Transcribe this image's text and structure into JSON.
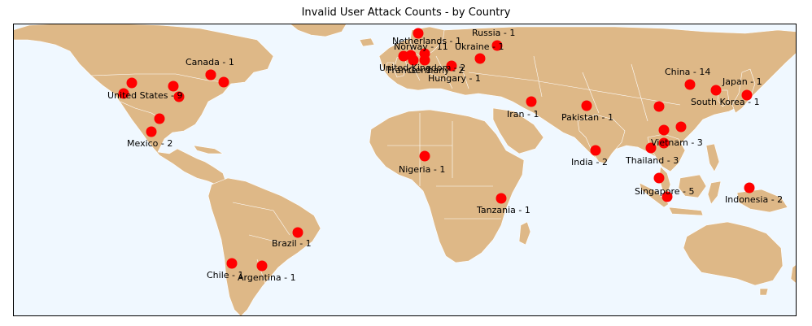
{
  "title": "Invalid User Attack Counts - by Country",
  "colors": {
    "ocean": "#f0f8ff",
    "land": "#deb887",
    "border": "#ffffff",
    "marker": "#ff0000"
  },
  "markers": [
    {
      "id": "us-1"
    },
    {
      "id": "us-2"
    },
    {
      "id": "us-3"
    },
    {
      "id": "us-4"
    },
    {
      "id": "us-5"
    },
    {
      "id": "us-6"
    },
    {
      "id": "ca-1"
    },
    {
      "id": "mx-1"
    },
    {
      "id": "mx-2"
    },
    {
      "id": "br-1"
    },
    {
      "id": "cl-1"
    },
    {
      "id": "ar-1"
    },
    {
      "id": "nl-1"
    },
    {
      "id": "no-1"
    },
    {
      "id": "uk-1"
    },
    {
      "id": "fr-1"
    },
    {
      "id": "de-1"
    },
    {
      "id": "de-2"
    },
    {
      "id": "ru-1"
    },
    {
      "id": "ua-1"
    },
    {
      "id": "hu-1"
    },
    {
      "id": "ng-1"
    },
    {
      "id": "tz-1"
    },
    {
      "id": "ir-1"
    },
    {
      "id": "pk-1"
    },
    {
      "id": "in-1"
    },
    {
      "id": "cn-1"
    },
    {
      "id": "cn-2"
    },
    {
      "id": "jp-1"
    },
    {
      "id": "kr-1"
    },
    {
      "id": "vn-1"
    },
    {
      "id": "vn-2"
    },
    {
      "id": "th-1"
    },
    {
      "id": "th-2"
    },
    {
      "id": "sg-1"
    },
    {
      "id": "id-1"
    },
    {
      "id": "id-2"
    }
  ],
  "labels": [
    {
      "id": "canada",
      "text": "Canada - 1"
    },
    {
      "id": "united-states",
      "text": "United States - 9"
    },
    {
      "id": "mexico",
      "text": "Mexico - 2"
    },
    {
      "id": "brazil",
      "text": "Brazil - 1"
    },
    {
      "id": "chile",
      "text": "Chile - 1"
    },
    {
      "id": "argentina",
      "text": "Argentina - 1"
    },
    {
      "id": "netherlands",
      "text": "Netherlands - 1"
    },
    {
      "id": "norway",
      "text": "Norway - 11"
    },
    {
      "id": "united-kingdom",
      "text": "United Kingdom - 2"
    },
    {
      "id": "france",
      "text": "France - 1"
    },
    {
      "id": "germany",
      "text": "Germany - 2"
    },
    {
      "id": "russia",
      "text": "Russia - 1"
    },
    {
      "id": "ukraine",
      "text": "Ukraine - 1"
    },
    {
      "id": "hungary",
      "text": "Hungary - 1"
    },
    {
      "id": "iran",
      "text": "Iran - 1"
    },
    {
      "id": "pakistan",
      "text": "Pakistan - 1"
    },
    {
      "id": "india",
      "text": "India - 2"
    },
    {
      "id": "nigeria",
      "text": "Nigeria - 1"
    },
    {
      "id": "tanzania",
      "text": "Tanzania - 1"
    },
    {
      "id": "china",
      "text": "China - 14"
    },
    {
      "id": "japan",
      "text": "Japan - 1"
    },
    {
      "id": "south-korea",
      "text": "South Korea - 1"
    },
    {
      "id": "vietnam",
      "text": "Vietnam - 3"
    },
    {
      "id": "thailand",
      "text": "Thailand - 3"
    },
    {
      "id": "singapore",
      "text": "Singapore - 5"
    },
    {
      "id": "indonesia",
      "text": "Indonesia - 2"
    }
  ]
}
